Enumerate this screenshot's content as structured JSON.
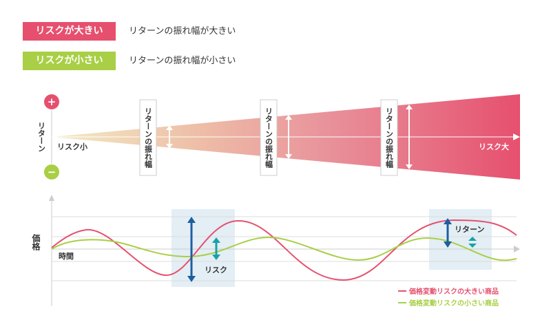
{
  "legend": {
    "big": {
      "label": "リスクが大きい",
      "desc": "リターンの振れ幅が大きい",
      "color": "#e6506e"
    },
    "small": {
      "label": "リスクが小さい",
      "desc": "リターンの振れ幅が小さい",
      "color": "#a8cf45"
    }
  },
  "return_diagram": {
    "y_label": "リターン",
    "plus": "+",
    "minus": "−",
    "low_label": "リスク小",
    "high_label": "リスク大",
    "swing_label": "リターンの振れ幅"
  },
  "price_chart": {
    "y_label": "価格",
    "x_label": "時間",
    "risk_label": "リスク",
    "return_label": "リターン",
    "series": [
      {
        "name": "価格変動リスクの大きい商品",
        "color": "#e6506e"
      },
      {
        "name": "価格変動リスクの小さい商品",
        "color": "#a8cf45"
      }
    ]
  }
}
